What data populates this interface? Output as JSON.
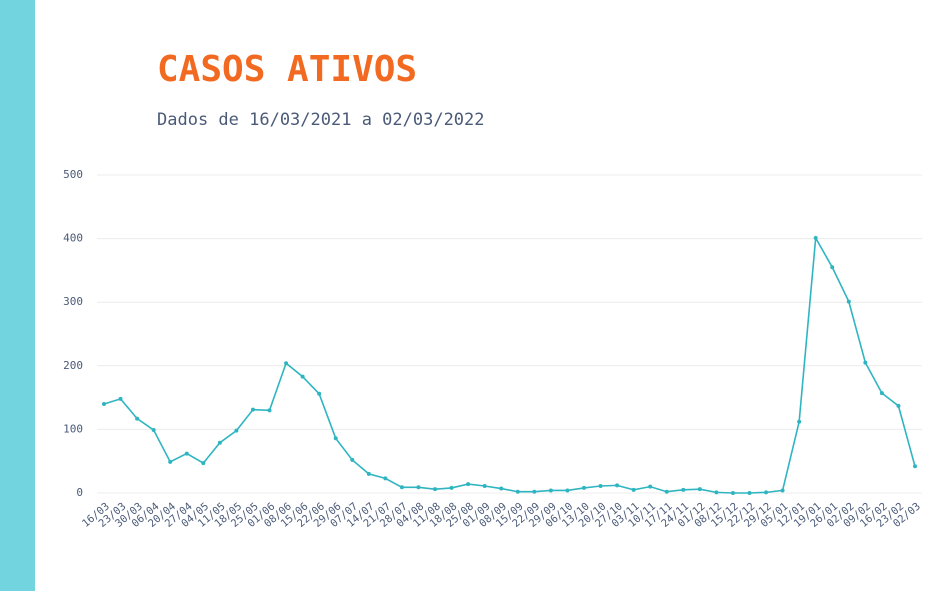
{
  "chart_data": {
    "type": "line",
    "title": "CASOS ATIVOS",
    "subtitle": "Dados de 16/03/2021 a 02/03/2022",
    "categories": [
      "16/03",
      "23/03",
      "30/03",
      "06/04",
      "20/04",
      "27/04",
      "04/05",
      "11/05",
      "18/05",
      "25/05",
      "01/06",
      "08/06",
      "15/06",
      "22/06",
      "29/06",
      "07/07",
      "14/07",
      "21/07",
      "28/07",
      "04/08",
      "11/08",
      "18/08",
      "25/08",
      "01/09",
      "08/09",
      "15/09",
      "22/09",
      "29/09",
      "06/10",
      "13/10",
      "20/10",
      "27/10",
      "03/11",
      "10/11",
      "17/11",
      "24/11",
      "01/12",
      "08/12",
      "15/12",
      "22/12",
      "29/12",
      "05/01",
      "12/01",
      "19/01",
      "26/01",
      "02/02",
      "09/02",
      "16/02",
      "23/02",
      "02/03"
    ],
    "series": [
      {
        "color": "#2fb5c1",
        "values": [
          140,
          148,
          117,
          99,
          49,
          62,
          47,
          79,
          98,
          131,
          130,
          204,
          183,
          156,
          86,
          52,
          30,
          23,
          9,
          9,
          6,
          8,
          14,
          11,
          7,
          2,
          2,
          4,
          4,
          8,
          11,
          12,
          5,
          10,
          2,
          5,
          6,
          1,
          0,
          0,
          1,
          4,
          112,
          401,
          355,
          301,
          205,
          157,
          137,
          42
        ]
      }
    ],
    "ylim": [
      0,
      500
    ],
    "yticks": [
      0,
      100,
      200,
      300,
      400,
      500
    ],
    "grid": true
  }
}
